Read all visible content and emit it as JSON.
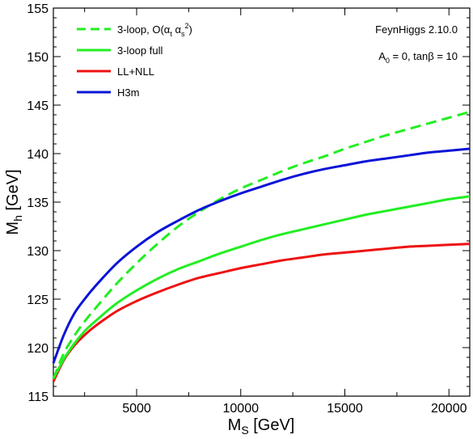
{
  "chart_data": {
    "type": "line",
    "xlabel": "M",
    "xlabel_sub": "S",
    "xlabel_unit": " [GeV]",
    "ylabel": "M",
    "ylabel_sub": "h",
    "ylabel_unit": " [GeV]",
    "xlim": [
      1000,
      21000
    ],
    "ylim": [
      115,
      155
    ],
    "xticks": [
      5000,
      10000,
      15000,
      20000
    ],
    "xtick_labels": [
      "5000",
      "10000",
      "15000",
      "20000"
    ],
    "yticks": [
      115,
      120,
      125,
      130,
      135,
      140,
      145,
      150,
      155
    ],
    "ytick_labels": [
      "115",
      "120",
      "125",
      "130",
      "135",
      "140",
      "145",
      "150",
      "155"
    ],
    "legend_position": "top-left",
    "annotations": [
      {
        "text": "FeynHiggs 2.10.0"
      },
      {
        "text": "A",
        "sub": "0",
        "rest": " = 0, tanβ = 10"
      }
    ],
    "series": [
      {
        "name": "3-loop, O(α",
        "name_sub1": "t",
        "name_mid": " α",
        "name_sub2": "s",
        "name_sup": "2",
        "name_end": ")",
        "color": "#22ee22",
        "dash": "dashed",
        "x": [
          1000,
          1500,
          2000,
          2500,
          3000,
          4000,
          5000,
          6000,
          7000,
          8000,
          9000,
          10000,
          11000,
          12000,
          13000,
          14000,
          15000,
          16000,
          17000,
          18000,
          19000,
          20000,
          21000
        ],
        "y": [
          116.8,
          119.4,
          121.2,
          122.7,
          124.0,
          126.5,
          128.7,
          130.7,
          132.5,
          134.0,
          135.3,
          136.4,
          137.3,
          138.2,
          139.0,
          139.7,
          140.5,
          141.2,
          141.9,
          142.5,
          143.1,
          143.7,
          144.3
        ]
      },
      {
        "name": "3-loop full",
        "color": "#22ee22",
        "dash": "solid",
        "x": [
          1000,
          1500,
          2000,
          2500,
          3000,
          4000,
          5000,
          6000,
          7000,
          8000,
          9000,
          10000,
          11000,
          12000,
          13000,
          14000,
          15000,
          16000,
          17000,
          18000,
          19000,
          20000,
          21000
        ],
        "y": [
          116.8,
          118.8,
          120.4,
          121.7,
          122.7,
          124.5,
          125.9,
          127.1,
          128.1,
          128.9,
          129.7,
          130.4,
          131.1,
          131.7,
          132.2,
          132.7,
          133.2,
          133.7,
          134.1,
          134.5,
          134.9,
          135.3,
          135.6
        ]
      },
      {
        "name": "LL+NLL",
        "color": "#ee1111",
        "dash": "solid",
        "x": [
          1000,
          1500,
          2000,
          2500,
          3000,
          4000,
          5000,
          6000,
          7000,
          8000,
          9000,
          10000,
          11000,
          12000,
          13000,
          14000,
          15000,
          16000,
          17000,
          18000,
          19000,
          20000,
          21000
        ],
        "y": [
          116.5,
          118.7,
          120.2,
          121.3,
          122.2,
          123.7,
          124.8,
          125.7,
          126.5,
          127.2,
          127.7,
          128.2,
          128.6,
          129.0,
          129.3,
          129.6,
          129.8,
          130.0,
          130.2,
          130.4,
          130.5,
          130.6,
          130.7
        ]
      },
      {
        "name": "H3m",
        "color": "#0a14d6",
        "dash": "solid",
        "x": [
          1000,
          1500,
          2000,
          2500,
          3000,
          4000,
          5000,
          6000,
          7000,
          8000,
          9000,
          10000,
          11000,
          12000,
          13000,
          14000,
          15000,
          16000,
          17000,
          18000,
          19000,
          20000,
          21000
        ],
        "y": [
          118.4,
          121.3,
          123.5,
          125.0,
          126.3,
          128.6,
          130.4,
          131.9,
          133.1,
          134.2,
          135.1,
          135.9,
          136.6,
          137.3,
          137.9,
          138.4,
          138.8,
          139.2,
          139.5,
          139.8,
          140.1,
          140.3,
          140.5
        ]
      }
    ]
  }
}
